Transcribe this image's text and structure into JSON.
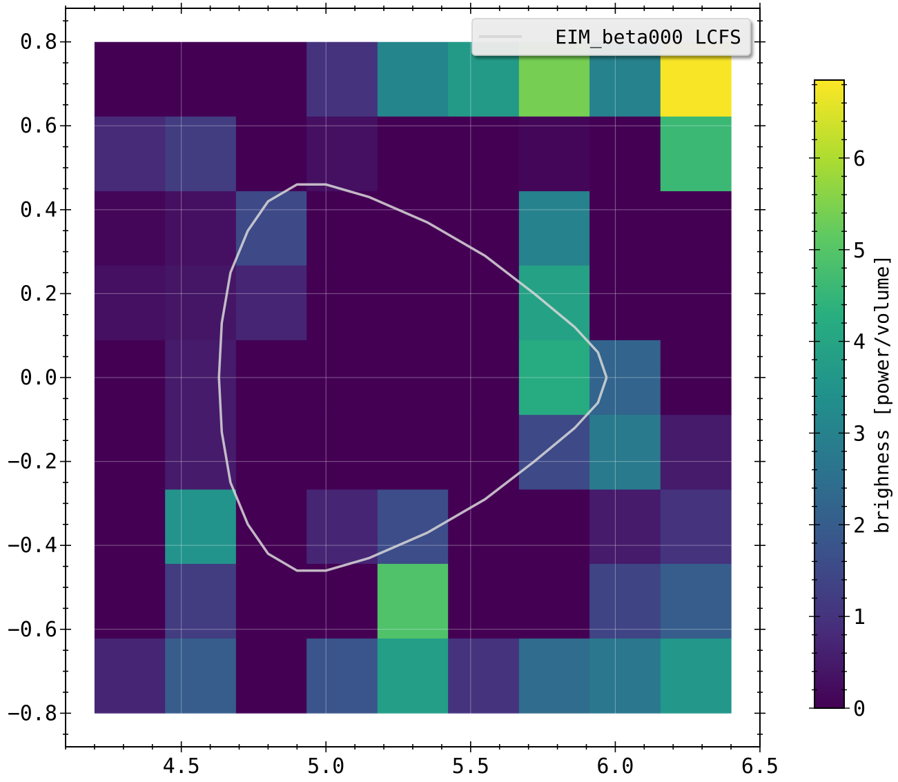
{
  "chart_data": {
    "type": "heatmap",
    "title": "",
    "xlabel": "",
    "ylabel": "",
    "xlim": [
      4.1,
      6.5
    ],
    "ylim": [
      -0.88,
      0.88
    ],
    "x_ticks": [
      "4.5",
      "5.0",
      "5.5",
      "6.0",
      "6.5"
    ],
    "y_ticks": [
      "0.8",
      "0.6",
      "0.4",
      "0.2",
      "0.0",
      "−0.2",
      "−0.4",
      "−0.6",
      "−0.8"
    ],
    "grid": true,
    "x_edges": [
      4.2,
      4.444,
      4.689,
      4.933,
      5.178,
      5.422,
      5.667,
      5.911,
      6.156,
      6.4
    ],
    "y_edges": [
      0.8,
      0.622,
      0.444,
      0.267,
      0.089,
      -0.089,
      -0.267,
      -0.444,
      -0.622,
      -0.8
    ],
    "values": [
      [
        0.0,
        0.0,
        0.0,
        1.0,
        3.1,
        3.7,
        5.4,
        3.0,
        6.8
      ],
      [
        0.8,
        1.2,
        0.0,
        0.3,
        0.0,
        0.0,
        0.1,
        0.0,
        4.6
      ],
      [
        0.1,
        0.3,
        1.5,
        0.0,
        0.0,
        0.0,
        3.0,
        0.0,
        0.0
      ],
      [
        0.3,
        0.4,
        0.7,
        0.0,
        0.0,
        0.0,
        3.9,
        0.0,
        0.0
      ],
      [
        0.0,
        0.5,
        0.0,
        0.0,
        0.0,
        0.0,
        4.2,
        2.2,
        0.0
      ],
      [
        0.0,
        0.5,
        0.0,
        0.0,
        0.0,
        0.0,
        1.5,
        2.8,
        0.5
      ],
      [
        0.0,
        3.5,
        0.0,
        0.7,
        1.6,
        0.0,
        0.0,
        0.5,
        1.0
      ],
      [
        0.0,
        1.2,
        0.0,
        0.0,
        4.9,
        0.0,
        0.0,
        1.4,
        2.0
      ],
      [
        0.7,
        2.0,
        0.0,
        1.8,
        3.8,
        1.0,
        2.4,
        2.7,
        3.6
      ]
    ],
    "colorbar": {
      "label": "brighness [power/volume]",
      "min": 0,
      "max": 6.85,
      "ticks": [
        "0",
        "1",
        "2",
        "3",
        "4",
        "5",
        "6"
      ]
    },
    "lcfs": {
      "name": "EIM_beta000 LCFS",
      "color": "#d8d8d8",
      "curve": [
        [
          5.97,
          0.0
        ],
        [
          5.94,
          0.06
        ],
        [
          5.86,
          0.12
        ],
        [
          5.72,
          0.2
        ],
        [
          5.55,
          0.29
        ],
        [
          5.35,
          0.37
        ],
        [
          5.15,
          0.43
        ],
        [
          5.0,
          0.46
        ],
        [
          4.9,
          0.46
        ],
        [
          4.8,
          0.42
        ],
        [
          4.73,
          0.35
        ],
        [
          4.67,
          0.25
        ],
        [
          4.64,
          0.13
        ],
        [
          4.63,
          0.0
        ],
        [
          4.64,
          -0.13
        ],
        [
          4.67,
          -0.25
        ],
        [
          4.73,
          -0.35
        ],
        [
          4.8,
          -0.42
        ],
        [
          4.9,
          -0.46
        ],
        [
          5.0,
          -0.46
        ],
        [
          5.15,
          -0.43
        ],
        [
          5.35,
          -0.37
        ],
        [
          5.55,
          -0.29
        ],
        [
          5.72,
          -0.2
        ],
        [
          5.86,
          -0.12
        ],
        [
          5.94,
          -0.06
        ],
        [
          5.97,
          0.0
        ]
      ]
    },
    "legend_position": "top-right"
  }
}
